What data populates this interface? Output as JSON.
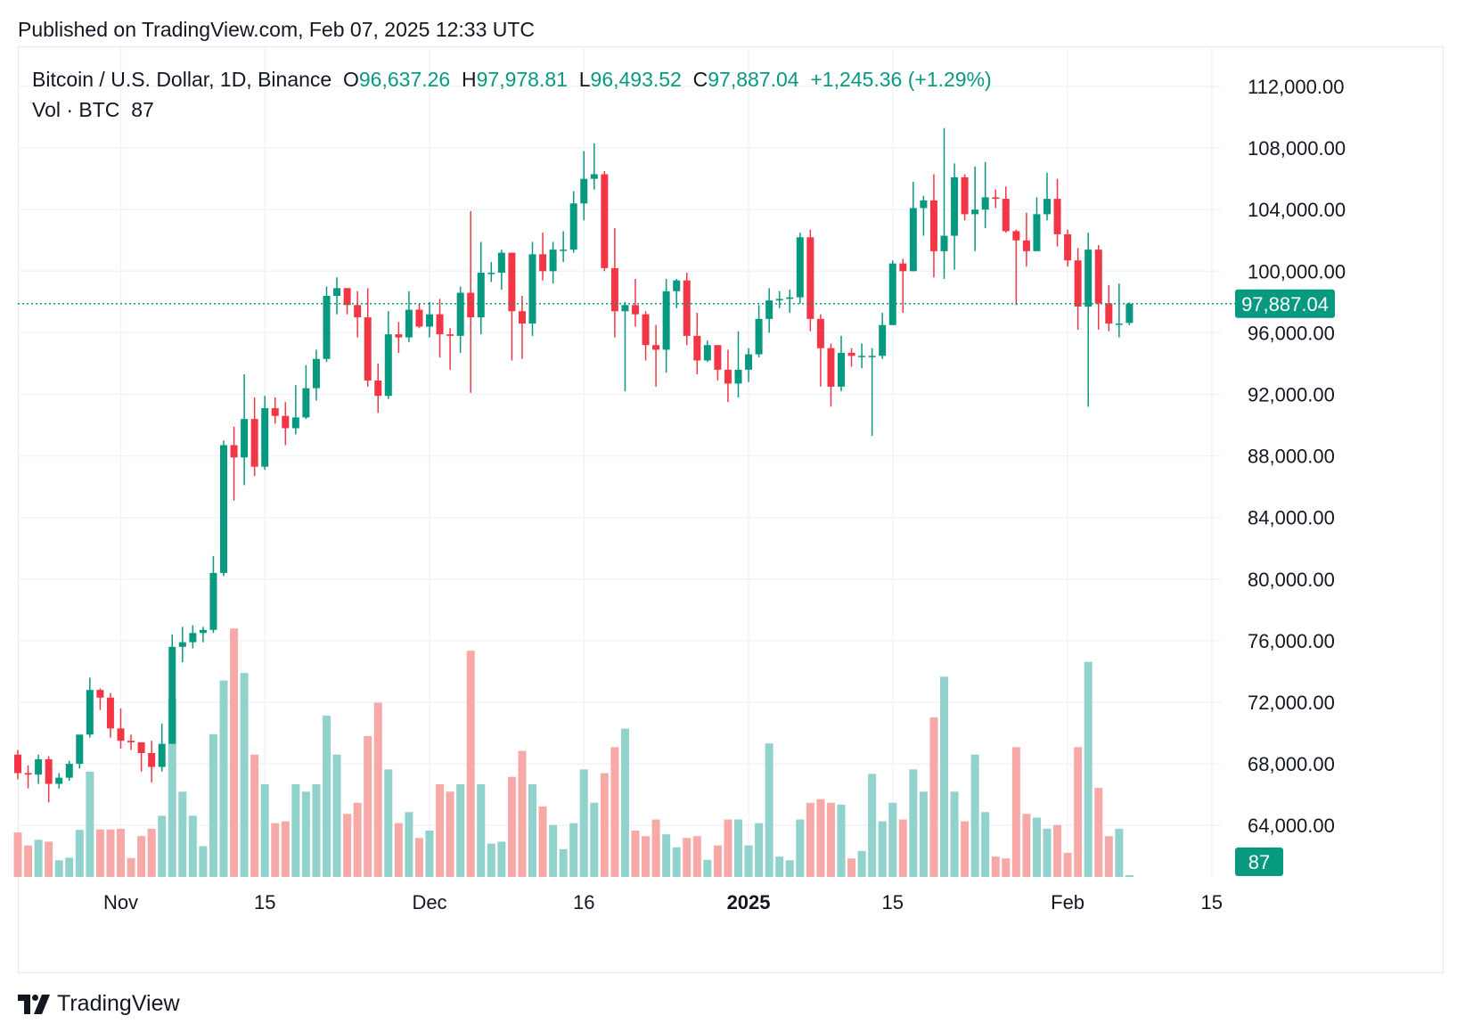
{
  "header": {
    "published": "Published on TradingView.com, Feb 07, 2025 12:33 UTC"
  },
  "legend": {
    "symbol": "Bitcoin / U.S. Dollar, 1D, Binance",
    "o_label": "O",
    "o_value": "96,637.26",
    "h_label": "H",
    "h_value": "97,978.81",
    "l_label": "L",
    "l_value": "96,493.52",
    "c_label": "C",
    "c_value": "97,887.04",
    "change": "+1,245.36 (+1.29%)",
    "vol_label": "Vol · BTC",
    "vol_value": "87"
  },
  "brand": {
    "name": "TradingView"
  },
  "colors": {
    "up": "#089981",
    "down": "#F23645",
    "up_vol": "#92D2CC",
    "down_vol": "#F7A9A7"
  },
  "chart_data": {
    "type": "candlestick",
    "symbol": "Bitcoin / U.S. Dollar",
    "interval": "1D",
    "exchange": "Binance",
    "ylim": [
      60000,
      114000
    ],
    "y_ticks": [
      112000,
      108000,
      104000,
      100000,
      96000,
      92000,
      88000,
      84000,
      80000,
      76000,
      72000,
      68000,
      64000
    ],
    "y_tick_labels": [
      "112,000.00",
      "108,000.00",
      "104,000.00",
      "100,000.00",
      "96,000.00",
      "92,000.00",
      "88,000.00",
      "84,000.00",
      "80,000.00",
      "76,000.00",
      "72,000.00",
      "68,000.00",
      "64,000.00"
    ],
    "x_ticks": [
      {
        "label": "Nov",
        "date": "2024-11-01",
        "bold": false
      },
      {
        "label": "15",
        "date": "2024-11-15",
        "bold": false
      },
      {
        "label": "Dec",
        "date": "2024-12-01",
        "bold": false
      },
      {
        "label": "16",
        "date": "2024-12-16",
        "bold": false
      },
      {
        "label": "2025",
        "date": "2025-01-01",
        "bold": true
      },
      {
        "label": "15",
        "date": "2025-01-15",
        "bold": false
      },
      {
        "label": "Feb",
        "date": "2025-02-01",
        "bold": false
      },
      {
        "label": "15",
        "date": "2025-02-15",
        "bold": false
      }
    ],
    "last_price": 97887.04,
    "last_price_label": "97,887.04",
    "last_volume_label": "87",
    "grid": true,
    "candles": [
      {
        "date": "2024-10-22",
        "o": 68600,
        "h": 68900,
        "l": 67000,
        "c": 67400,
        "v": 12000
      },
      {
        "date": "2024-10-23",
        "o": 67400,
        "h": 67900,
        "l": 66400,
        "c": 67300,
        "v": 8500
      },
      {
        "date": "2024-10-24",
        "o": 67300,
        "h": 68600,
        "l": 66700,
        "c": 68300,
        "v": 10000
      },
      {
        "date": "2024-10-25",
        "o": 68300,
        "h": 68500,
        "l": 65500,
        "c": 66700,
        "v": 9500
      },
      {
        "date": "2024-10-26",
        "o": 66700,
        "h": 67400,
        "l": 66400,
        "c": 67100,
        "v": 4500
      },
      {
        "date": "2024-10-27",
        "o": 67100,
        "h": 68200,
        "l": 66900,
        "c": 68000,
        "v": 5200
      },
      {
        "date": "2024-10-28",
        "o": 68000,
        "h": 69700,
        "l": 67700,
        "c": 69900,
        "v": 12700
      },
      {
        "date": "2024-10-29",
        "o": 69900,
        "h": 73600,
        "l": 69700,
        "c": 72800,
        "v": 28400
      },
      {
        "date": "2024-10-30",
        "o": 72800,
        "h": 72900,
        "l": 71500,
        "c": 72300,
        "v": 12800
      },
      {
        "date": "2024-10-31",
        "o": 72300,
        "h": 72600,
        "l": 69700,
        "c": 70300,
        "v": 12800
      },
      {
        "date": "2024-11-01",
        "o": 70300,
        "h": 71600,
        "l": 69000,
        "c": 69500,
        "v": 13000
      },
      {
        "date": "2024-11-02",
        "o": 69500,
        "h": 69900,
        "l": 68900,
        "c": 69400,
        "v": 5100
      },
      {
        "date": "2024-11-03",
        "o": 69400,
        "h": 69400,
        "l": 67500,
        "c": 68700,
        "v": 11000
      },
      {
        "date": "2024-11-04",
        "o": 68700,
        "h": 69500,
        "l": 66800,
        "c": 67800,
        "v": 13000
      },
      {
        "date": "2024-11-05",
        "o": 67800,
        "h": 70600,
        "l": 67500,
        "c": 69300,
        "v": 16500
      },
      {
        "date": "2024-11-06",
        "o": 69300,
        "h": 76400,
        "l": 69300,
        "c": 75600,
        "v": 48000
      },
      {
        "date": "2024-11-07",
        "o": 75600,
        "h": 76900,
        "l": 74600,
        "c": 75900,
        "v": 23000
      },
      {
        "date": "2024-11-08",
        "o": 75900,
        "h": 77000,
        "l": 75500,
        "c": 76500,
        "v": 16500
      },
      {
        "date": "2024-11-09",
        "o": 76500,
        "h": 76900,
        "l": 75900,
        "c": 76700,
        "v": 8300
      },
      {
        "date": "2024-11-10",
        "o": 76700,
        "h": 81500,
        "l": 76500,
        "c": 80400,
        "v": 38500
      },
      {
        "date": "2024-11-11",
        "o": 80400,
        "h": 89000,
        "l": 80200,
        "c": 88700,
        "v": 53000
      },
      {
        "date": "2024-11-12",
        "o": 88700,
        "h": 89900,
        "l": 85100,
        "c": 87900,
        "v": 67000
      },
      {
        "date": "2024-11-13",
        "o": 87900,
        "h": 93300,
        "l": 86100,
        "c": 90400,
        "v": 55000
      },
      {
        "date": "2024-11-14",
        "o": 90400,
        "h": 91800,
        "l": 86700,
        "c": 87300,
        "v": 33000
      },
      {
        "date": "2024-11-15",
        "o": 87300,
        "h": 91900,
        "l": 87100,
        "c": 91100,
        "v": 25000
      },
      {
        "date": "2024-11-16",
        "o": 91100,
        "h": 91800,
        "l": 90100,
        "c": 90600,
        "v": 14500
      },
      {
        "date": "2024-11-17",
        "o": 90600,
        "h": 91500,
        "l": 88700,
        "c": 89800,
        "v": 15000
      },
      {
        "date": "2024-11-18",
        "o": 89800,
        "h": 92600,
        "l": 89400,
        "c": 90500,
        "v": 25000
      },
      {
        "date": "2024-11-19",
        "o": 90500,
        "h": 93900,
        "l": 90400,
        "c": 92400,
        "v": 23000
      },
      {
        "date": "2024-11-20",
        "o": 92400,
        "h": 94900,
        "l": 91600,
        "c": 94300,
        "v": 25000
      },
      {
        "date": "2024-11-21",
        "o": 94300,
        "h": 99000,
        "l": 94100,
        "c": 98400,
        "v": 43500
      },
      {
        "date": "2024-11-22",
        "o": 98400,
        "h": 99600,
        "l": 97200,
        "c": 98900,
        "v": 33000
      },
      {
        "date": "2024-11-23",
        "o": 98900,
        "h": 98900,
        "l": 97200,
        "c": 97800,
        "v": 17000
      },
      {
        "date": "2024-11-24",
        "o": 97800,
        "h": 98700,
        "l": 95700,
        "c": 97000,
        "v": 20000
      },
      {
        "date": "2024-11-25",
        "o": 97000,
        "h": 98900,
        "l": 92500,
        "c": 92900,
        "v": 38000
      },
      {
        "date": "2024-11-26",
        "o": 92900,
        "h": 94000,
        "l": 90800,
        "c": 91900,
        "v": 47000
      },
      {
        "date": "2024-11-27",
        "o": 91900,
        "h": 97400,
        "l": 91700,
        "c": 95900,
        "v": 29000
      },
      {
        "date": "2024-11-28",
        "o": 95900,
        "h": 96700,
        "l": 94700,
        "c": 95700,
        "v": 14500
      },
      {
        "date": "2024-11-29",
        "o": 95700,
        "h": 98700,
        "l": 95400,
        "c": 97500,
        "v": 17500
      },
      {
        "date": "2024-11-30",
        "o": 97500,
        "h": 97900,
        "l": 96300,
        "c": 96400,
        "v": 10500
      },
      {
        "date": "2024-12-01",
        "o": 96400,
        "h": 98000,
        "l": 95700,
        "c": 97200,
        "v": 12500
      },
      {
        "date": "2024-12-02",
        "o": 97200,
        "h": 98200,
        "l": 94400,
        "c": 95900,
        "v": 25000
      },
      {
        "date": "2024-12-03",
        "o": 95900,
        "h": 96300,
        "l": 93600,
        "c": 95800,
        "v": 23000
      },
      {
        "date": "2024-12-04",
        "o": 95800,
        "h": 99000,
        "l": 94700,
        "c": 98600,
        "v": 25000
      },
      {
        "date": "2024-12-05",
        "o": 98600,
        "h": 103900,
        "l": 92100,
        "c": 97000,
        "v": 61000
      },
      {
        "date": "2024-12-06",
        "o": 97000,
        "h": 101900,
        "l": 95900,
        "c": 99900,
        "v": 25000
      },
      {
        "date": "2024-12-07",
        "o": 99900,
        "h": 100600,
        "l": 99300,
        "c": 99900,
        "v": 9000
      },
      {
        "date": "2024-12-08",
        "o": 99900,
        "h": 101400,
        "l": 98800,
        "c": 101200,
        "v": 9500
      },
      {
        "date": "2024-12-09",
        "o": 101200,
        "h": 101200,
        "l": 94200,
        "c": 97400,
        "v": 27000
      },
      {
        "date": "2024-12-10",
        "o": 97400,
        "h": 98400,
        "l": 94300,
        "c": 96600,
        "v": 34000
      },
      {
        "date": "2024-12-11",
        "o": 96600,
        "h": 101900,
        "l": 95800,
        "c": 101100,
        "v": 25000
      },
      {
        "date": "2024-12-12",
        "o": 101100,
        "h": 102500,
        "l": 99400,
        "c": 100000,
        "v": 19000
      },
      {
        "date": "2024-12-13",
        "o": 100000,
        "h": 101900,
        "l": 99200,
        "c": 101400,
        "v": 14000
      },
      {
        "date": "2024-12-14",
        "o": 101400,
        "h": 102600,
        "l": 100600,
        "c": 101400,
        "v": 7500
      },
      {
        "date": "2024-12-15",
        "o": 101400,
        "h": 105200,
        "l": 101200,
        "c": 104400,
        "v": 14500
      },
      {
        "date": "2024-12-16",
        "o": 104400,
        "h": 107800,
        "l": 103300,
        "c": 106000,
        "v": 29000
      },
      {
        "date": "2024-12-17",
        "o": 106000,
        "h": 108300,
        "l": 105300,
        "c": 106300,
        "v": 20000
      },
      {
        "date": "2024-12-18",
        "o": 106300,
        "h": 106500,
        "l": 100000,
        "c": 100200,
        "v": 28000
      },
      {
        "date": "2024-12-19",
        "o": 100200,
        "h": 102800,
        "l": 95700,
        "c": 97400,
        "v": 35000
      },
      {
        "date": "2024-12-20",
        "o": 97400,
        "h": 98000,
        "l": 92200,
        "c": 97800,
        "v": 40000
      },
      {
        "date": "2024-12-21",
        "o": 97800,
        "h": 99500,
        "l": 96400,
        "c": 97200,
        "v": 12500
      },
      {
        "date": "2024-12-22",
        "o": 97200,
        "h": 97400,
        "l": 94200,
        "c": 95200,
        "v": 11000
      },
      {
        "date": "2024-12-23",
        "o": 95200,
        "h": 96500,
        "l": 92500,
        "c": 94900,
        "v": 15500
      },
      {
        "date": "2024-12-24",
        "o": 94900,
        "h": 99500,
        "l": 93400,
        "c": 98700,
        "v": 11500
      },
      {
        "date": "2024-12-25",
        "o": 98700,
        "h": 99500,
        "l": 97600,
        "c": 99400,
        "v": 8000
      },
      {
        "date": "2024-12-26",
        "o": 99400,
        "h": 99900,
        "l": 95200,
        "c": 95800,
        "v": 10500
      },
      {
        "date": "2024-12-27",
        "o": 95800,
        "h": 97300,
        "l": 93300,
        "c": 94200,
        "v": 11000
      },
      {
        "date": "2024-12-28",
        "o": 94200,
        "h": 95500,
        "l": 94100,
        "c": 95200,
        "v": 4600
      },
      {
        "date": "2024-12-29",
        "o": 95200,
        "h": 95200,
        "l": 92900,
        "c": 93600,
        "v": 8500
      },
      {
        "date": "2024-12-30",
        "o": 93600,
        "h": 94900,
        "l": 91500,
        "c": 92700,
        "v": 15500
      },
      {
        "date": "2024-12-31",
        "o": 92700,
        "h": 96100,
        "l": 91800,
        "c": 93600,
        "v": 15500
      },
      {
        "date": "2025-01-01",
        "o": 93600,
        "h": 95000,
        "l": 92800,
        "c": 94600,
        "v": 8500
      },
      {
        "date": "2025-01-02",
        "o": 94600,
        "h": 97800,
        "l": 94400,
        "c": 96900,
        "v": 14500
      },
      {
        "date": "2025-01-03",
        "o": 96900,
        "h": 98900,
        "l": 96000,
        "c": 98100,
        "v": 36000
      },
      {
        "date": "2025-01-04",
        "o": 98100,
        "h": 98700,
        "l": 97600,
        "c": 98200,
        "v": 5500
      },
      {
        "date": "2025-01-05",
        "o": 98200,
        "h": 98800,
        "l": 97300,
        "c": 98300,
        "v": 4500
      },
      {
        "date": "2025-01-06",
        "o": 98300,
        "h": 102500,
        "l": 97900,
        "c": 102200,
        "v": 15500
      },
      {
        "date": "2025-01-07",
        "o": 102200,
        "h": 102700,
        "l": 96100,
        "c": 96900,
        "v": 20000
      },
      {
        "date": "2025-01-08",
        "o": 96900,
        "h": 97200,
        "l": 92500,
        "c": 95000,
        "v": 21000
      },
      {
        "date": "2025-01-09",
        "o": 95000,
        "h": 95300,
        "l": 91200,
        "c": 92500,
        "v": 20000
      },
      {
        "date": "2025-01-10",
        "o": 92500,
        "h": 95800,
        "l": 92200,
        "c": 94700,
        "v": 19500
      },
      {
        "date": "2025-01-11",
        "o": 94700,
        "h": 95000,
        "l": 93800,
        "c": 94500,
        "v": 5000
      },
      {
        "date": "2025-01-12",
        "o": 94500,
        "h": 95300,
        "l": 93700,
        "c": 94500,
        "v": 7000
      },
      {
        "date": "2025-01-13",
        "o": 94500,
        "h": 95000,
        "l": 89300,
        "c": 94500,
        "v": 27800
      },
      {
        "date": "2025-01-14",
        "o": 94500,
        "h": 97300,
        "l": 94300,
        "c": 96500,
        "v": 15000
      },
      {
        "date": "2025-01-15",
        "o": 96500,
        "h": 100700,
        "l": 96500,
        "c": 100500,
        "v": 20000
      },
      {
        "date": "2025-01-16",
        "o": 100500,
        "h": 100800,
        "l": 97300,
        "c": 100000,
        "v": 15500
      },
      {
        "date": "2025-01-17",
        "o": 100000,
        "h": 105800,
        "l": 100000,
        "c": 104100,
        "v": 29000
      },
      {
        "date": "2025-01-18",
        "o": 104100,
        "h": 104900,
        "l": 102300,
        "c": 104600,
        "v": 23000
      },
      {
        "date": "2025-01-19",
        "o": 104600,
        "h": 106300,
        "l": 99600,
        "c": 101300,
        "v": 43000
      },
      {
        "date": "2025-01-20",
        "o": 101300,
        "h": 109300,
        "l": 99500,
        "c": 102300,
        "v": 54000
      },
      {
        "date": "2025-01-21",
        "o": 102300,
        "h": 107000,
        "l": 100100,
        "c": 106100,
        "v": 23000
      },
      {
        "date": "2025-01-22",
        "o": 106100,
        "h": 106300,
        "l": 103300,
        "c": 103700,
        "v": 15000
      },
      {
        "date": "2025-01-23",
        "o": 103700,
        "h": 106800,
        "l": 101300,
        "c": 104000,
        "v": 33000
      },
      {
        "date": "2025-01-24",
        "o": 104000,
        "h": 107100,
        "l": 102800,
        "c": 104800,
        "v": 17500
      },
      {
        "date": "2025-01-25",
        "o": 104800,
        "h": 105300,
        "l": 104100,
        "c": 104700,
        "v": 5500
      },
      {
        "date": "2025-01-26",
        "o": 104700,
        "h": 105500,
        "l": 102500,
        "c": 102600,
        "v": 5000
      },
      {
        "date": "2025-01-27",
        "o": 102600,
        "h": 102700,
        "l": 97800,
        "c": 102000,
        "v": 35000
      },
      {
        "date": "2025-01-28",
        "o": 102000,
        "h": 103800,
        "l": 100300,
        "c": 101300,
        "v": 17000
      },
      {
        "date": "2025-01-29",
        "o": 101300,
        "h": 104800,
        "l": 101300,
        "c": 103700,
        "v": 16000
      },
      {
        "date": "2025-01-30",
        "o": 103700,
        "h": 106400,
        "l": 103300,
        "c": 104700,
        "v": 13000
      },
      {
        "date": "2025-01-31",
        "o": 104700,
        "h": 106000,
        "l": 101600,
        "c": 102400,
        "v": 14000
      },
      {
        "date": "2025-02-01",
        "o": 102400,
        "h": 102700,
        "l": 100300,
        "c": 100700,
        "v": 6500
      },
      {
        "date": "2025-02-02",
        "o": 100700,
        "h": 101500,
        "l": 96200,
        "c": 97700,
        "v": 35000
      },
      {
        "date": "2025-02-03",
        "o": 97700,
        "h": 102500,
        "l": 91200,
        "c": 101400,
        "v": 58000
      },
      {
        "date": "2025-02-04",
        "o": 101400,
        "h": 101700,
        "l": 96200,
        "c": 97900,
        "v": 24000
      },
      {
        "date": "2025-02-05",
        "o": 97900,
        "h": 99100,
        "l": 96100,
        "c": 96600,
        "v": 11000
      },
      {
        "date": "2025-02-06",
        "o": 96600,
        "h": 99200,
        "l": 95700,
        "c": 96600,
        "v": 13000
      },
      {
        "date": "2025-02-07",
        "o": 96637.26,
        "h": 97978.81,
        "l": 96493.52,
        "c": 97887.04,
        "v": 87
      }
    ]
  }
}
